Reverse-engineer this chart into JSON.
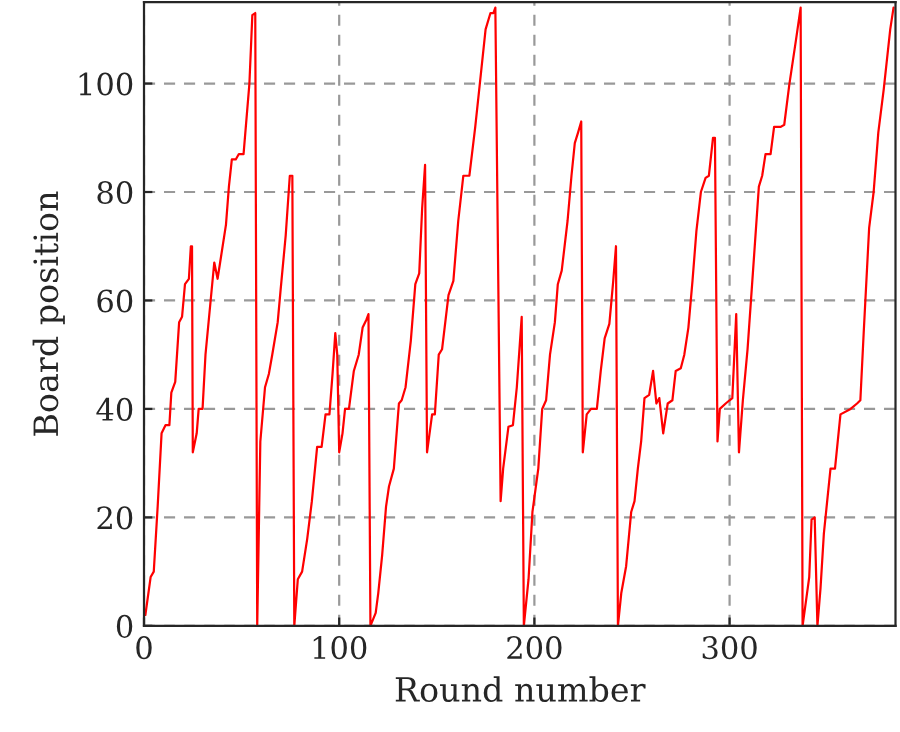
{
  "chart_data": {
    "type": "line",
    "xlabel": "Round number",
    "ylabel": "Board position",
    "xlim": [
      0,
      385
    ],
    "ylim": [
      0,
      115
    ],
    "xticks": [
      0,
      100,
      200,
      300
    ],
    "yticks": [
      0,
      20,
      40,
      60,
      80,
      100
    ],
    "grid": true,
    "line_style": "solid",
    "marker": "none",
    "series": [
      {
        "color": "#ff0000",
        "x": [
          0,
          0.7,
          3.4,
          5,
          7,
          9,
          11,
          13,
          14,
          16,
          18,
          19.5,
          21,
          23,
          24,
          24.6,
          25,
          27,
          28,
          30,
          31.5,
          36,
          37.7,
          39,
          42,
          43.5,
          45,
          47,
          48.6,
          51,
          54,
          55.5,
          57,
          58,
          59.6,
          62,
          64,
          65.7,
          68.5,
          70,
          72.6,
          74.7,
          76,
          77,
          78.8,
          81,
          83.6,
          86,
          88.7,
          91,
          93,
          95,
          96.6,
          98,
          99,
          100,
          101.7,
          103,
          105,
          107.5,
          110,
          112,
          114,
          115,
          116,
          118.7,
          120,
          122,
          124,
          125.5,
          128,
          130.6,
          132,
          134,
          136.7,
          139,
          141,
          142.5,
          144,
          145,
          147.6,
          149,
          151,
          152.7,
          156,
          158.5,
          161,
          163.6,
          166.7,
          169.7,
          172,
          175,
          177.5,
          179,
          180,
          182.7,
          184,
          186.7,
          189,
          191,
          193.5,
          194.6,
          197,
          199,
          202,
          204,
          206,
          208,
          210.5,
          212,
          214,
          217,
          219,
          220.7,
          222.4,
          224,
          224.8,
          226.8,
          229,
          232,
          234,
          236,
          238.4,
          240.4,
          241.8,
          242.8,
          244.5,
          247,
          249.6,
          251.3,
          253,
          254.7,
          256.4,
          258.8,
          260.8,
          262.5,
          264,
          266,
          268.3,
          270.7,
          272.4,
          275,
          276.8,
          278.9,
          281,
          283,
          285.3,
          287.7,
          289.4,
          291.5,
          292.5,
          293.8,
          295,
          298,
          300,
          301.4,
          303.4,
          304.8,
          306.8,
          309.2,
          312.6,
          315,
          316.7,
          318.4,
          321,
          322.8,
          326.2,
          328,
          330.6,
          334,
          336.4,
          337.4,
          338.8,
          340.8,
          342,
          343.6,
          345,
          346.6,
          348.3,
          351.7,
          354,
          356.8,
          362,
          365.3,
          367,
          368.7,
          371.5,
          373.8,
          376.2,
          379,
          382.3,
          384
        ],
        "values": [
          2,
          2,
          9,
          10,
          22,
          35.5,
          37,
          37,
          43,
          45,
          56,
          57,
          63,
          64,
          70,
          70,
          32,
          35.5,
          40,
          40,
          50,
          67,
          64,
          67,
          74,
          81,
          86,
          86,
          87,
          87,
          100,
          112.6,
          113,
          0,
          34,
          44,
          46.5,
          50,
          56,
          62,
          72,
          83,
          83,
          0,
          8.6,
          10,
          16,
          23,
          33,
          33,
          39,
          39,
          46.5,
          54,
          50,
          32,
          35.5,
          40,
          40,
          47,
          50,
          55,
          56.5,
          57.5,
          0,
          2.4,
          6,
          13,
          22,
          25.7,
          29,
          41,
          41.6,
          44,
          52.6,
          63,
          65,
          77,
          85,
          32,
          39,
          39,
          50,
          51,
          61,
          63.6,
          74.7,
          83,
          83,
          92,
          99.8,
          110,
          113,
          113,
          114,
          23,
          29,
          36.7,
          37,
          44,
          57,
          0,
          8.6,
          21,
          29,
          40,
          41.6,
          50,
          56,
          63,
          65.5,
          74.7,
          83,
          89,
          91,
          93,
          32,
          39,
          40,
          40,
          47,
          53,
          55.7,
          63.6,
          70,
          0,
          6,
          11,
          21,
          23,
          29,
          34,
          42,
          42.6,
          47,
          41,
          42,
          35.5,
          41,
          41.6,
          47,
          47.5,
          50,
          55,
          63.6,
          72.8,
          80,
          82.6,
          83,
          90,
          90,
          34,
          40,
          41,
          41.6,
          42,
          57.5,
          32,
          41.6,
          51,
          68.5,
          81,
          83,
          87,
          87,
          92,
          92,
          92.4,
          99.8,
          108,
          114,
          0,
          3.7,
          9,
          19.6,
          20,
          0,
          7,
          17,
          29,
          29,
          39,
          40,
          41,
          41.6,
          54,
          73.4,
          80,
          91,
          99,
          110,
          114
        ]
      }
    ]
  }
}
